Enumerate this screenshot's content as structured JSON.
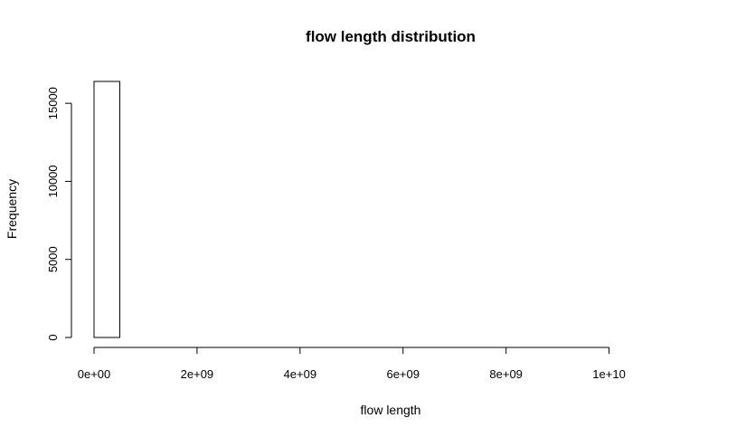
{
  "chart_data": {
    "type": "bar",
    "title": "flow length distribution",
    "xlabel": "flow length",
    "ylabel": "Frequency",
    "bin_width": 500000000,
    "xlim": [
      0,
      11500000000
    ],
    "ylim": [
      0,
      16400
    ],
    "x_ticks": [
      0,
      2000000000,
      4000000000,
      6000000000,
      8000000000,
      10000000000
    ],
    "x_tick_labels": [
      "0e+00",
      "2e+09",
      "4e+09",
      "6e+09",
      "8e+09",
      "1e+10"
    ],
    "y_ticks": [
      0,
      5000,
      10000,
      15000
    ],
    "y_tick_labels": [
      "0",
      "5000",
      "10000",
      "15000"
    ],
    "bins": [
      {
        "x0": 0,
        "x1": 500000000,
        "count": 16400
      },
      {
        "x0": 500000000,
        "x1": 1000000000,
        "count": 0
      },
      {
        "x0": 1000000000,
        "x1": 1500000000,
        "count": 0
      },
      {
        "x0": 1500000000,
        "x1": 2000000000,
        "count": 0
      },
      {
        "x0": 2000000000,
        "x1": 2500000000,
        "count": 0
      },
      {
        "x0": 2500000000,
        "x1": 3000000000,
        "count": 0
      },
      {
        "x0": 3000000000,
        "x1": 3500000000,
        "count": 0
      },
      {
        "x0": 3500000000,
        "x1": 4000000000,
        "count": 0
      },
      {
        "x0": 4000000000,
        "x1": 4500000000,
        "count": 0
      },
      {
        "x0": 4500000000,
        "x1": 5000000000,
        "count": 0
      },
      {
        "x0": 5000000000,
        "x1": 5500000000,
        "count": 0
      },
      {
        "x0": 5500000000,
        "x1": 6000000000,
        "count": 0
      },
      {
        "x0": 6000000000,
        "x1": 6500000000,
        "count": 0
      },
      {
        "x0": 6500000000,
        "x1": 7000000000,
        "count": 0
      },
      {
        "x0": 7000000000,
        "x1": 7500000000,
        "count": 0
      },
      {
        "x0": 7500000000,
        "x1": 8000000000,
        "count": 0
      },
      {
        "x0": 8000000000,
        "x1": 8500000000,
        "count": 0
      },
      {
        "x0": 8500000000,
        "x1": 9000000000,
        "count": 0
      },
      {
        "x0": 9000000000,
        "x1": 9500000000,
        "count": 0
      },
      {
        "x0": 9500000000,
        "x1": 10000000000,
        "count": 0
      },
      {
        "x0": 10000000000,
        "x1": 10500000000,
        "count": 0
      },
      {
        "x0": 10500000000,
        "x1": 11000000000,
        "count": 0
      },
      {
        "x0": 11000000000,
        "x1": 11500000000,
        "count": 0
      }
    ]
  }
}
